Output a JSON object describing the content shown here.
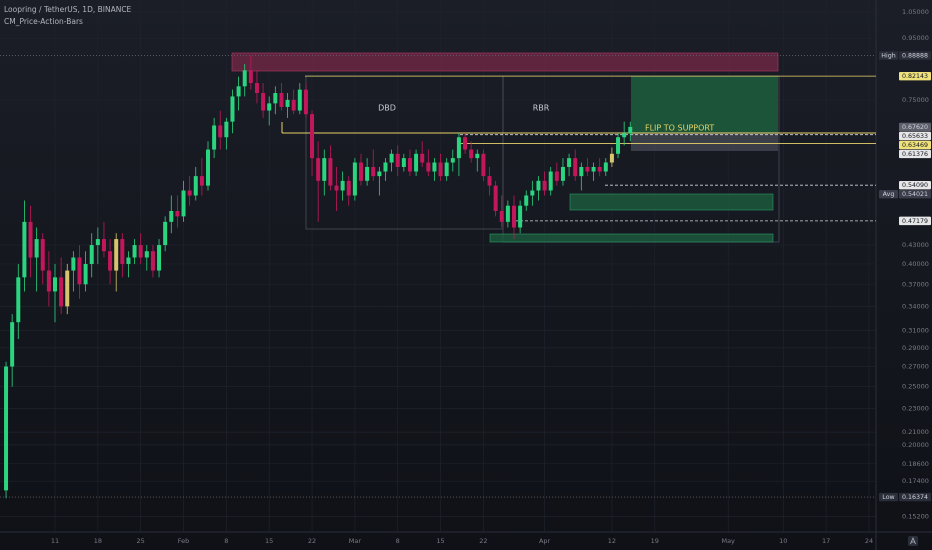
{
  "chart_data": {
    "type": "candlestick",
    "title": "Loopring / TetherUS, 1D, BINANCE",
    "subtitle": "CM_Price-Action-Bars",
    "log_scale": true,
    "grid": true,
    "up_color": "#2bd47f",
    "down_color": "#c2185b",
    "inside_color": "#d6c56c",
    "inside_bars": [
      10,
      18,
      99
    ],
    "candles": [
      [
        0.168,
        0.275,
        0.163,
        0.27
      ],
      [
        0.27,
        0.33,
        0.25,
        0.32
      ],
      [
        0.32,
        0.4,
        0.3,
        0.38
      ],
      [
        0.38,
        0.51,
        0.36,
        0.47
      ],
      [
        0.47,
        0.5,
        0.38,
        0.41
      ],
      [
        0.41,
        0.46,
        0.36,
        0.44
      ],
      [
        0.44,
        0.45,
        0.37,
        0.39
      ],
      [
        0.39,
        0.42,
        0.34,
        0.36
      ],
      [
        0.36,
        0.4,
        0.32,
        0.38
      ],
      [
        0.38,
        0.41,
        0.33,
        0.34
      ],
      [
        0.34,
        0.4,
        0.33,
        0.39
      ],
      [
        0.39,
        0.42,
        0.36,
        0.41
      ],
      [
        0.41,
        0.43,
        0.35,
        0.37
      ],
      [
        0.37,
        0.42,
        0.36,
        0.4
      ],
      [
        0.4,
        0.45,
        0.38,
        0.43
      ],
      [
        0.43,
        0.46,
        0.4,
        0.44
      ],
      [
        0.44,
        0.47,
        0.41,
        0.42
      ],
      [
        0.42,
        0.44,
        0.37,
        0.39
      ],
      [
        0.39,
        0.45,
        0.36,
        0.44
      ],
      [
        0.44,
        0.45,
        0.38,
        0.4
      ],
      [
        0.4,
        0.42,
        0.38,
        0.41
      ],
      [
        0.41,
        0.44,
        0.4,
        0.43
      ],
      [
        0.43,
        0.45,
        0.4,
        0.41
      ],
      [
        0.41,
        0.43,
        0.39,
        0.42
      ],
      [
        0.42,
        0.43,
        0.38,
        0.39
      ],
      [
        0.39,
        0.44,
        0.38,
        0.43
      ],
      [
        0.43,
        0.48,
        0.42,
        0.47
      ],
      [
        0.47,
        0.52,
        0.45,
        0.49
      ],
      [
        0.49,
        0.52,
        0.46,
        0.48
      ],
      [
        0.48,
        0.55,
        0.47,
        0.53
      ],
      [
        0.53,
        0.56,
        0.5,
        0.52
      ],
      [
        0.52,
        0.58,
        0.51,
        0.56
      ],
      [
        0.56,
        0.6,
        0.52,
        0.54
      ],
      [
        0.54,
        0.64,
        0.53,
        0.62
      ],
      [
        0.62,
        0.7,
        0.6,
        0.68
      ],
      [
        0.68,
        0.72,
        0.62,
        0.65
      ],
      [
        0.65,
        0.7,
        0.62,
        0.69
      ],
      [
        0.69,
        0.78,
        0.66,
        0.76
      ],
      [
        0.76,
        0.82,
        0.72,
        0.79
      ],
      [
        0.79,
        0.86,
        0.76,
        0.84
      ],
      [
        0.84,
        0.889,
        0.78,
        0.8
      ],
      [
        0.8,
        0.84,
        0.74,
        0.77
      ],
      [
        0.77,
        0.8,
        0.7,
        0.72
      ],
      [
        0.72,
        0.76,
        0.68,
        0.74
      ],
      [
        0.74,
        0.79,
        0.71,
        0.77
      ],
      [
        0.77,
        0.8,
        0.72,
        0.73
      ],
      [
        0.73,
        0.77,
        0.7,
        0.75
      ],
      [
        0.75,
        0.78,
        0.71,
        0.72
      ],
      [
        0.72,
        0.8,
        0.71,
        0.78
      ],
      [
        0.78,
        0.8,
        0.7,
        0.71
      ],
      [
        0.71,
        0.72,
        0.56,
        0.6
      ],
      [
        0.6,
        0.64,
        0.47,
        0.55
      ],
      [
        0.55,
        0.62,
        0.52,
        0.6
      ],
      [
        0.6,
        0.63,
        0.53,
        0.54
      ],
      [
        0.54,
        0.58,
        0.49,
        0.53
      ],
      [
        0.53,
        0.57,
        0.51,
        0.55
      ],
      [
        0.55,
        0.56,
        0.5,
        0.52
      ],
      [
        0.52,
        0.6,
        0.51,
        0.59
      ],
      [
        0.59,
        0.61,
        0.54,
        0.55
      ],
      [
        0.55,
        0.6,
        0.54,
        0.58
      ],
      [
        0.58,
        0.62,
        0.55,
        0.56
      ],
      [
        0.56,
        0.58,
        0.52,
        0.57
      ],
      [
        0.57,
        0.6,
        0.55,
        0.59
      ],
      [
        0.59,
        0.62,
        0.57,
        0.61
      ],
      [
        0.61,
        0.63,
        0.56,
        0.58
      ],
      [
        0.58,
        0.61,
        0.57,
        0.6
      ],
      [
        0.6,
        0.62,
        0.56,
        0.57
      ],
      [
        0.57,
        0.62,
        0.56,
        0.61
      ],
      [
        0.61,
        0.64,
        0.58,
        0.59
      ],
      [
        0.59,
        0.62,
        0.56,
        0.57
      ],
      [
        0.57,
        0.6,
        0.55,
        0.59
      ],
      [
        0.59,
        0.61,
        0.55,
        0.56
      ],
      [
        0.56,
        0.6,
        0.55,
        0.59
      ],
      [
        0.59,
        0.62,
        0.57,
        0.6
      ],
      [
        0.6,
        0.66,
        0.56,
        0.65
      ],
      [
        0.65,
        0.66,
        0.61,
        0.62
      ],
      [
        0.62,
        0.64,
        0.59,
        0.6
      ],
      [
        0.6,
        0.62,
        0.57,
        0.61
      ],
      [
        0.61,
        0.62,
        0.55,
        0.56
      ],
      [
        0.56,
        0.58,
        0.52,
        0.54
      ],
      [
        0.54,
        0.55,
        0.48,
        0.49
      ],
      [
        0.49,
        0.52,
        0.46,
        0.47
      ],
      [
        0.47,
        0.51,
        0.46,
        0.5
      ],
      [
        0.5,
        0.52,
        0.44,
        0.46
      ],
      [
        0.46,
        0.51,
        0.45,
        0.5
      ],
      [
        0.5,
        0.53,
        0.49,
        0.52
      ],
      [
        0.52,
        0.55,
        0.5,
        0.53
      ],
      [
        0.53,
        0.56,
        0.51,
        0.55
      ],
      [
        0.55,
        0.57,
        0.52,
        0.53
      ],
      [
        0.53,
        0.58,
        0.52,
        0.57
      ],
      [
        0.57,
        0.59,
        0.54,
        0.55
      ],
      [
        0.55,
        0.6,
        0.54,
        0.58
      ],
      [
        0.58,
        0.61,
        0.56,
        0.6
      ],
      [
        0.6,
        0.62,
        0.55,
        0.56
      ],
      [
        0.56,
        0.59,
        0.53,
        0.58
      ],
      [
        0.58,
        0.6,
        0.56,
        0.57
      ],
      [
        0.57,
        0.59,
        0.55,
        0.58
      ],
      [
        0.58,
        0.6,
        0.56,
        0.57
      ],
      [
        0.57,
        0.6,
        0.56,
        0.59
      ],
      [
        0.59,
        0.625,
        0.58,
        0.61
      ],
      [
        0.61,
        0.66,
        0.6,
        0.65
      ],
      [
        0.65,
        0.69,
        0.63,
        0.66
      ],
      [
        0.66,
        0.69,
        0.64,
        0.6762
      ]
    ],
    "xticks": [
      {
        "value": 8,
        "label": "11"
      },
      {
        "value": 15,
        "label": "18"
      },
      {
        "value": 22,
        "label": "25"
      },
      {
        "value": 29,
        "label": "Feb"
      },
      {
        "value": 36,
        "label": "8"
      },
      {
        "value": 43,
        "label": "15"
      },
      {
        "value": 50,
        "label": "22"
      },
      {
        "value": 57,
        "label": "Mar"
      },
      {
        "value": 64,
        "label": "8"
      },
      {
        "value": 71,
        "label": "15"
      },
      {
        "value": 78,
        "label": "22"
      },
      {
        "value": 88,
        "label": "Apr"
      },
      {
        "value": 99,
        "label": "12"
      },
      {
        "value": 106,
        "label": "19"
      },
      {
        "value": 118,
        "label": "May"
      },
      {
        "value": 127,
        "label": "10"
      },
      {
        "value": 134,
        "label": "17"
      },
      {
        "value": 141,
        "label": "24"
      }
    ],
    "yticks": [
      {
        "value": 1.05,
        "label": "1.05000"
      },
      {
        "value": 0.95,
        "label": "0.95000"
      },
      {
        "value": 0.75,
        "label": "0.75000"
      },
      {
        "value": 0.43,
        "label": "0.43000"
      },
      {
        "value": 0.4,
        "label": "0.40000"
      },
      {
        "value": 0.37,
        "label": "0.37000"
      },
      {
        "value": 0.34,
        "label": "0.34000"
      },
      {
        "value": 0.31,
        "label": "0.31000"
      },
      {
        "value": 0.29,
        "label": "0.29000"
      },
      {
        "value": 0.27,
        "label": "0.27000"
      },
      {
        "value": 0.25,
        "label": "0.25000"
      },
      {
        "value": 0.23,
        "label": "0.23000"
      },
      {
        "value": 0.21,
        "label": "0.21000"
      },
      {
        "value": 0.2,
        "label": "0.20000"
      },
      {
        "value": 0.186,
        "label": "0.18600"
      },
      {
        "value": 0.174,
        "label": "0.17400"
      },
      {
        "value": 0.152,
        "label": "0.15200"
      }
    ],
    "levels": [
      {
        "value": 0.88888,
        "label": "0.88888",
        "tag": "High",
        "color": "#2a2e39"
      },
      {
        "value": 0.82143,
        "label": "0.82143",
        "color": "#f0e27a"
      },
      {
        "value": 0.6762,
        "label": "0.67620",
        "color": "#5d606b"
      },
      {
        "value": 0.65633,
        "label": "0.65633",
        "color": "#e6e6e6"
      },
      {
        "value": 0.63469,
        "label": "0.63469",
        "color": "#f0e27a"
      },
      {
        "value": 0.61376,
        "label": "0.61376",
        "color": "#e6e6e6"
      },
      {
        "value": 0.5409,
        "label": "0.54090",
        "color": "#e6e6e6"
      },
      {
        "value": 0.54021,
        "label": "0.54021",
        "tag": "Avg",
        "color": "#3a3e4a"
      },
      {
        "value": 0.47179,
        "label": "0.47179",
        "color": "#e6e6e6"
      },
      {
        "value": 0.16374,
        "label": "0.16374",
        "tag": "Low",
        "color": "#2a2e39"
      }
    ],
    "annotations": [
      "DBD",
      "RBR",
      "FLIP TO SUPPORT"
    ]
  }
}
